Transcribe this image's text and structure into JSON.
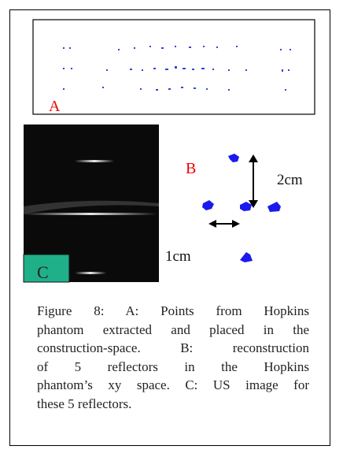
{
  "figure": {
    "panels": {
      "a": {
        "label": "A"
      },
      "b": {
        "label": "B",
        "vertical_scale": "2cm",
        "horizontal_scale": "1cm"
      },
      "c": {
        "label": "C"
      }
    },
    "caption_lines": [
      "Figure 8: A: Points from Hopkins",
      "phantom extracted and placed in the",
      "construction-space. B: reconstruction",
      "of 5 reflectors in the Hopkins",
      "phantom’s xy space. C: US image for",
      "these 5 reflectors."
    ]
  }
}
